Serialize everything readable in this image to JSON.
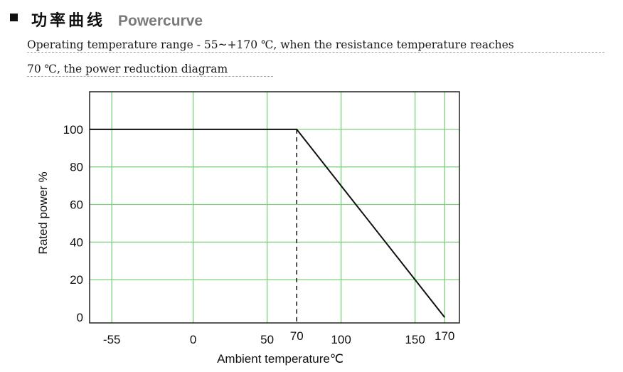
{
  "header": {
    "title_cn": "功率曲线",
    "title_en": "Powercurve"
  },
  "description": {
    "line1": "Operating temperature range - 55~+170 ℃, when the resistance temperature reaches",
    "line2": "70 ℃, the power reduction diagram"
  },
  "colors": {
    "grid": "#7ccf7c",
    "curve": "#111111",
    "frame": "#222222"
  },
  "chart_data": {
    "type": "line",
    "title": "",
    "xlabel": "Ambient temperature℃",
    "ylabel": "Rated power %",
    "x_ticks": [
      {
        "value": -55,
        "label": "-55"
      },
      {
        "value": 0,
        "label": "0"
      },
      {
        "value": 50,
        "label": "50"
      },
      {
        "value": 70,
        "label": "70"
      },
      {
        "value": 100,
        "label": "100"
      },
      {
        "value": 150,
        "label": "150"
      },
      {
        "value": 170,
        "label": "170"
      }
    ],
    "y_ticks": [
      {
        "value": 0,
        "label": "0"
      },
      {
        "value": 20,
        "label": "20"
      },
      {
        "value": 40,
        "label": "40"
      },
      {
        "value": 60,
        "label": "60"
      },
      {
        "value": 80,
        "label": "80"
      },
      {
        "value": 100,
        "label": "100"
      }
    ],
    "series": [
      {
        "x": [
          -55,
          70,
          170
        ],
        "y": [
          100,
          100,
          0
        ]
      }
    ],
    "reference_line": {
      "x": 70,
      "y_from": 0,
      "y_to": 100,
      "style": "dashed"
    },
    "grid": true,
    "xlim": [
      -70,
      180
    ],
    "ylim": [
      -3,
      120
    ]
  }
}
